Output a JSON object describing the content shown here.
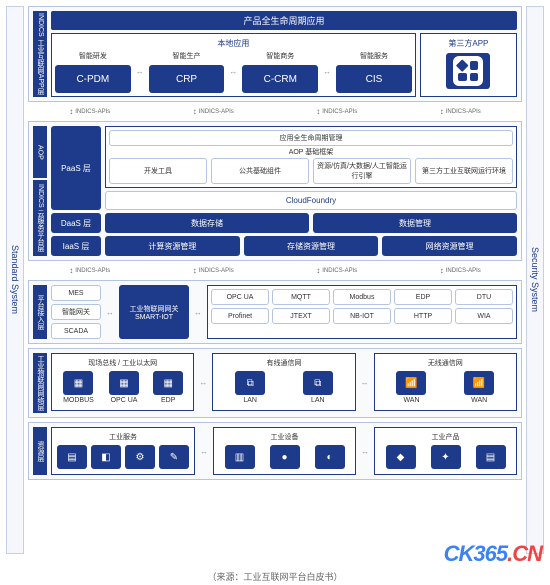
{
  "colors": {
    "primary": "#1e3a8a",
    "border": "#b5c4e0",
    "bg": "#f9fafc",
    "text": "#333",
    "api": "#666"
  },
  "left_bar": "Standard System",
  "right_bar": "Security System",
  "tier1": {
    "side": "INDICS 工业互联网APP层",
    "banner": "产品全生命周期应用",
    "local_title": "本地应用",
    "third_title": "第三方APP",
    "cols": [
      {
        "top": "智能研发",
        "box": "C-PDM"
      },
      {
        "top": "智能生产",
        "box": "CRP"
      },
      {
        "top": "智能商务",
        "box": "C-CRM"
      },
      {
        "top": "智能服务",
        "box": "CIS"
      }
    ]
  },
  "api_label": "INDICS-APIs",
  "tier2": {
    "side_aop": "AOP",
    "side": "INDICS 云服务平台层",
    "paas": "PaaS 层",
    "daas": "DaaS 层",
    "iaas": "IaaS 层",
    "mgmt": "应用全生命周期管理",
    "aop_label": "AOP 基础框架",
    "aop_items": [
      "开发工具",
      "公共基础组件",
      "资源/仿真/大数据/人工智能运行引擎",
      "第三方工业互联网运行环境"
    ],
    "cloudfoundry": "CloudFoundry",
    "daas_items": [
      "数据存储",
      "数据管理"
    ],
    "iaas_items": [
      "计算资源管理",
      "存储资源管理",
      "网络资源管理"
    ]
  },
  "tier3": {
    "side": "平台接入层",
    "left_items": [
      "MES",
      "智能网关",
      "SCADA"
    ],
    "gateway": "工业物联网网关\nSMART-IOT",
    "protocols": [
      "OPC UA",
      "MQTT",
      "Modbus",
      "EDP",
      "DTU",
      "Profinet",
      "JTEXT",
      "NB-IOT",
      "HTTP",
      "WIA"
    ]
  },
  "tier4": {
    "side": "工业物联网网络层",
    "group1_title": "现场总线 / 工业以太网",
    "group1_items": [
      "MODBUS",
      "OPC UA",
      "EDP"
    ],
    "group2_title": "有线通信网",
    "group2_items": [
      "LAN",
      "LAN"
    ],
    "group3_title": "无线通信网",
    "group3_items": [
      "WAN",
      "WAN"
    ]
  },
  "tier5": {
    "side": "资源层",
    "groups": [
      {
        "title": "工业服务",
        "n": 4
      },
      {
        "title": "工业设备",
        "n": 3
      },
      {
        "title": "工业产品",
        "n": 3
      }
    ]
  },
  "watermark": {
    "a": "CK365",
    "b": ".CN"
  },
  "source": "（来源：工业互联网平台白皮书）"
}
